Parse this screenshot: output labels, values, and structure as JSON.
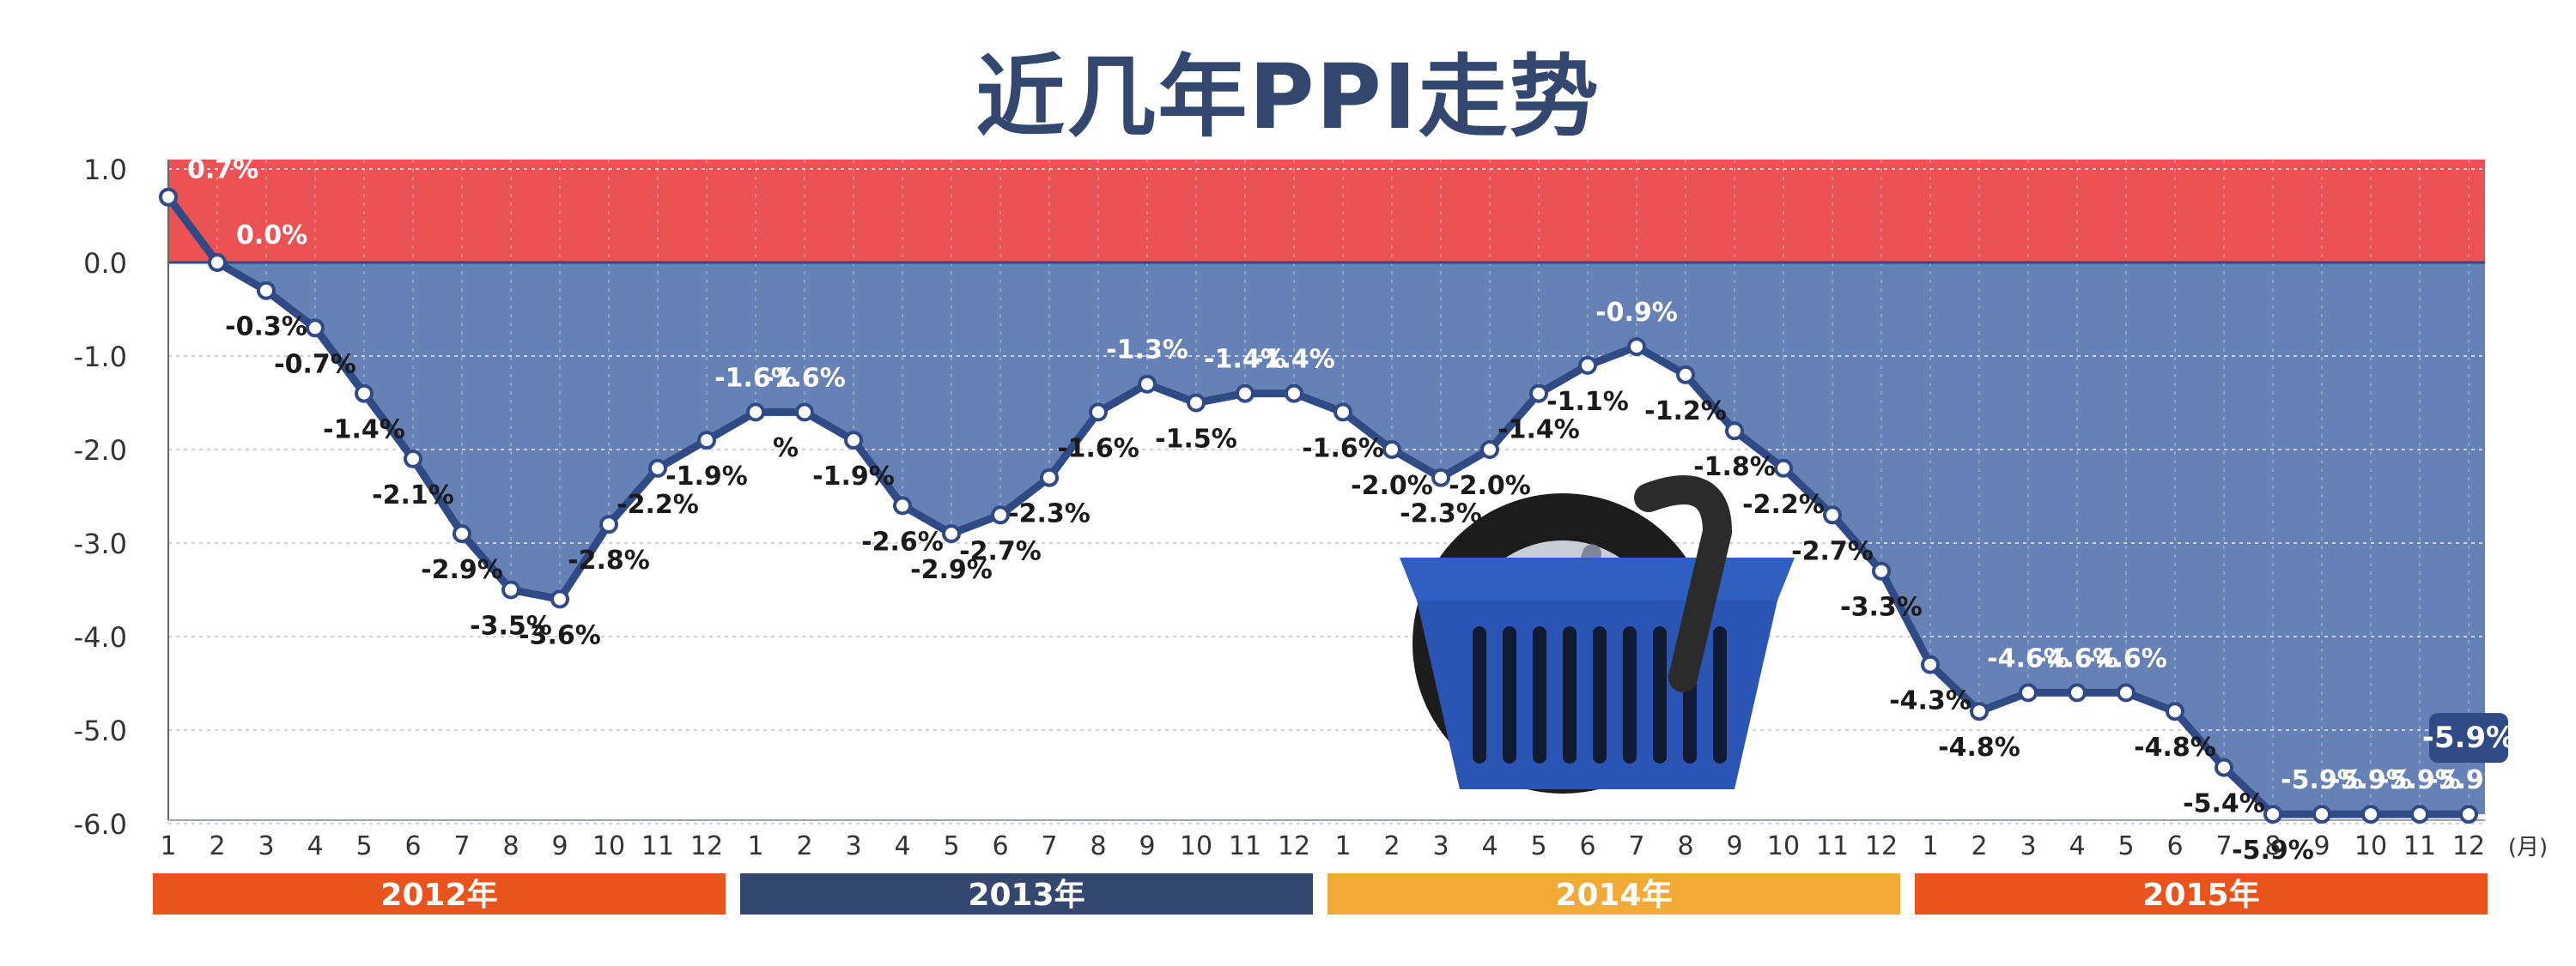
{
  "chart_data": {
    "type": "area",
    "title": "近几年PPI走势",
    "unit_label": "%",
    "x_unit_label": "(月)",
    "ylim": [
      -6.0,
      1.0
    ],
    "y_ticks": [
      "1.0",
      "0.0",
      "-1.0",
      "-2.0",
      "-3.0",
      "-4.0",
      "-5.0",
      "-6.0"
    ],
    "grid": true,
    "years": [
      {
        "label": "2012年",
        "color": "#e8541b"
      },
      {
        "label": "2013年",
        "color": "#34486f"
      },
      {
        "label": "2014年",
        "color": "#f2a935"
      },
      {
        "label": "2015年",
        "color": "#e8541b"
      }
    ],
    "months": [
      "1",
      "2",
      "3",
      "4",
      "5",
      "6",
      "7",
      "8",
      "9",
      "10",
      "11",
      "12",
      "1",
      "2",
      "3",
      "4",
      "5",
      "6",
      "7",
      "8",
      "9",
      "10",
      "11",
      "12",
      "1",
      "2",
      "3",
      "4",
      "5",
      "6",
      "7",
      "8",
      "9",
      "10",
      "11",
      "12",
      "1",
      "2",
      "3",
      "4",
      "5",
      "6",
      "7",
      "8",
      "9",
      "10",
      "11",
      "12"
    ],
    "values": [
      0.7,
      0.0,
      -0.3,
      -0.7,
      -1.4,
      -2.1,
      -2.9,
      -3.5,
      -3.6,
      -2.8,
      -2.2,
      -1.9,
      -1.6,
      -1.6,
      -1.9,
      -2.6,
      -2.9,
      -2.7,
      -2.3,
      -1.6,
      -1.3,
      -1.5,
      -1.4,
      -1.4,
      -1.6,
      -2.0,
      -2.3,
      -2.0,
      -1.4,
      -1.1,
      -0.9,
      -1.2,
      -1.8,
      -2.2,
      -2.7,
      -3.3,
      -4.3,
      -4.8,
      -4.6,
      -4.6,
      -4.6,
      -4.8,
      -5.4,
      -5.9,
      -5.9,
      -5.9,
      -5.9,
      -5.9
    ],
    "labels": [
      "0.7%",
      "0.0%",
      "-0.3%",
      "-0.7%",
      "-1.4%",
      "-2.1%",
      "-2.9%",
      "-3.5%",
      "-3.6%",
      "-2.8%",
      "-2.2%",
      "-1.9%",
      "-1.6%",
      "-1.6%",
      "-1.9%",
      "-2.6%",
      "-2.9%",
      "-2.7%",
      "-2.3%",
      "-1.6%",
      "-1.3%",
      "-1.5%",
      "-1.4%",
      "-1.4%",
      "-1.6%",
      "-2.0%",
      "-2.3%",
      "-2.0%",
      "-1.4%",
      "-1.1%",
      "-0.9%",
      "-1.2%",
      "-1.8%",
      "-2.2%",
      "-2.7%",
      "-3.3%",
      "-4.3%",
      "-4.8%",
      "-4.6%",
      "-4.6%",
      "-4.6%",
      "-4.8%",
      "-5.4%",
      "-5.9%",
      "-5.9%",
      "-5.9%",
      "-5.9%",
      "-5.9%"
    ],
    "colors": {
      "line": "#2f4a85",
      "area_below": "#6681b5",
      "area_above": "#ea5253",
      "marker_fill": "#ffffff",
      "axis_text": "#333333"
    }
  }
}
